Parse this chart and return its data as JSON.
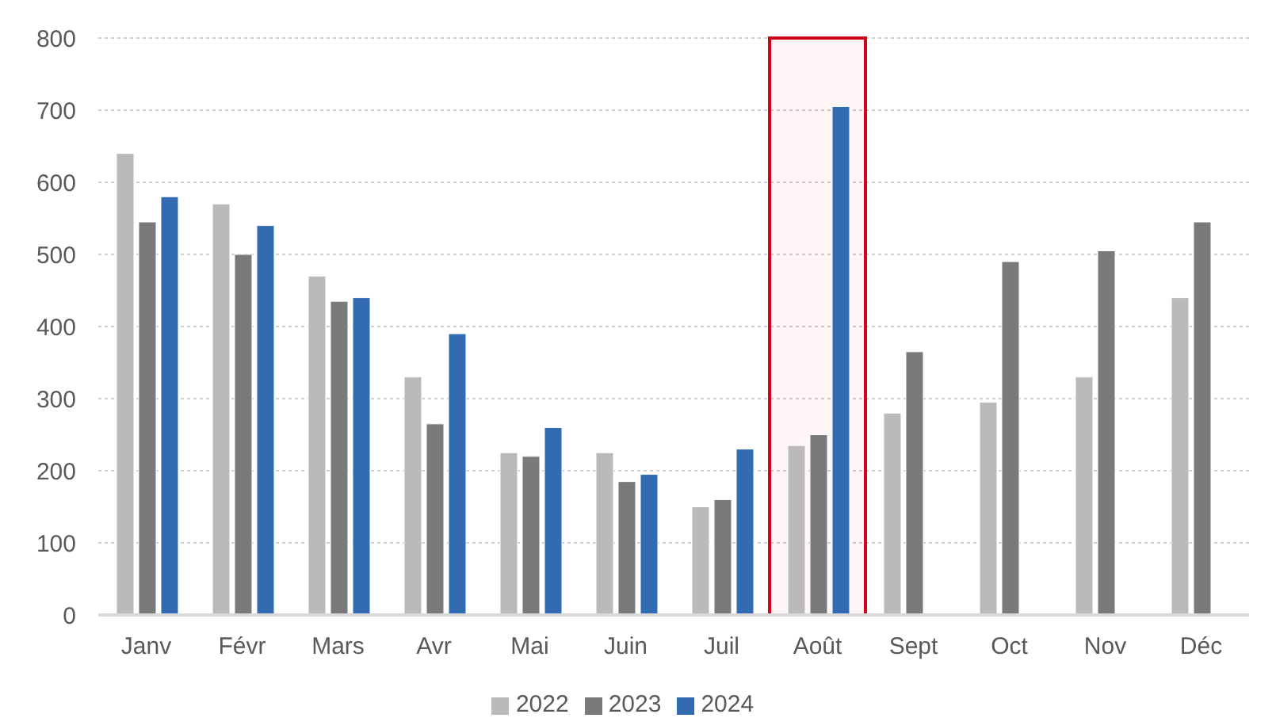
{
  "chart_data": {
    "type": "bar",
    "categories": [
      "Janv",
      "Févr",
      "Mars",
      "Avr",
      "Mai",
      "Juin",
      "Juil",
      "Août",
      "Sept",
      "Oct",
      "Nov",
      "Déc"
    ],
    "series": [
      {
        "name": "2022",
        "color": "#bababa",
        "values": [
          640,
          570,
          470,
          330,
          225,
          225,
          150,
          235,
          280,
          295,
          330,
          440
        ]
      },
      {
        "name": "2023",
        "color": "#7a7a7a",
        "values": [
          545,
          500,
          435,
          265,
          220,
          185,
          160,
          250,
          365,
          490,
          505,
          545
        ]
      },
      {
        "name": "2024",
        "color": "#336bb3",
        "values": [
          580,
          540,
          440,
          390,
          260,
          195,
          230,
          705,
          null,
          null,
          null,
          null
        ]
      }
    ],
    "ylim": [
      0,
      800
    ],
    "yticks": [
      0,
      100,
      200,
      300,
      400,
      500,
      600,
      700,
      800
    ],
    "grid": "y",
    "legend": "bottom",
    "bands": [
      {
        "axis": "x",
        "from": "Août",
        "to": "Août",
        "color": "#d0021b"
      }
    ]
  }
}
